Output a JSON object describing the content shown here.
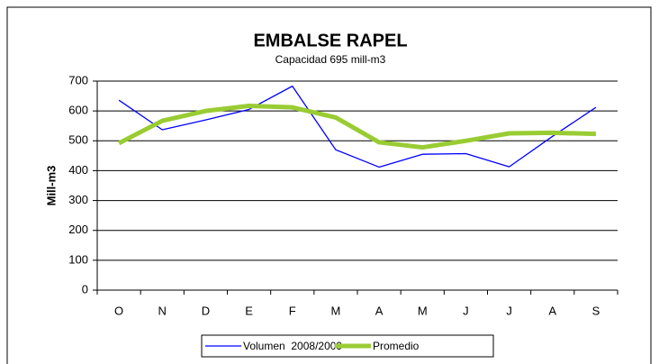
{
  "chart_data": {
    "type": "line",
    "title": "EMBALSE RAPEL",
    "subtitle": "Capacidad 695 mill-m3",
    "y_label": "Mill-m3",
    "categories": [
      "O",
      "N",
      "D",
      "E",
      "F",
      "M",
      "A",
      "M",
      "J",
      "J",
      "A",
      "S"
    ],
    "series": [
      {
        "name": "Volumen  2008/2009",
        "color": "#0000ff",
        "values": [
          636,
          537,
          570,
          605,
          683,
          470,
          412,
          455,
          457,
          413,
          515,
          612
        ]
      },
      {
        "name": "Promedio",
        "color": "#99cc33",
        "values": [
          492,
          567,
          600,
          617,
          612,
          578,
          495,
          478,
          500,
          525,
          527,
          523
        ]
      }
    ],
    "ylim": [
      0,
      700
    ],
    "yticks": [
      0,
      100,
      200,
      300,
      400,
      500,
      600,
      700
    ],
    "grid": true,
    "legend": "bottom"
  }
}
